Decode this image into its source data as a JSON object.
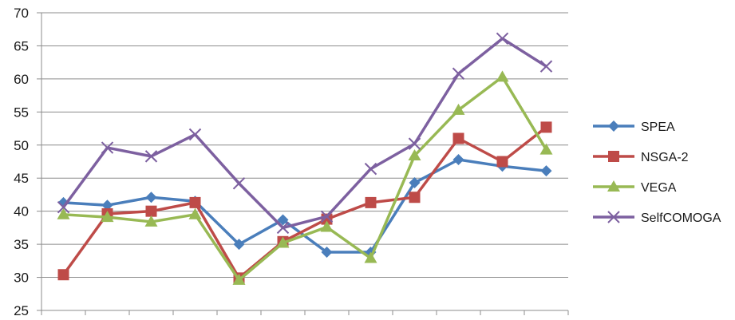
{
  "chart_data": {
    "type": "line",
    "title": "",
    "xlabel": "",
    "ylabel": "",
    "ylim": [
      25,
      70
    ],
    "yticks": [
      25,
      30,
      35,
      40,
      45,
      50,
      55,
      60,
      65,
      70
    ],
    "x_count": 12,
    "grid": "horizontal",
    "legend_position": "right",
    "series": [
      {
        "name": "SPEA",
        "color": "#4a7ebb",
        "marker": "diamond",
        "values": [
          41.3,
          40.9,
          42.1,
          41.5,
          35.0,
          38.7,
          33.8,
          33.8,
          44.3,
          47.8,
          46.8,
          46.1
        ]
      },
      {
        "name": "NSGA-2",
        "color": "#be4b48",
        "marker": "square",
        "values": [
          30.4,
          39.6,
          40.0,
          41.3,
          29.9,
          35.4,
          38.8,
          41.3,
          42.1,
          51.0,
          47.5,
          52.7
        ]
      },
      {
        "name": "VEGA",
        "color": "#98b954",
        "marker": "triangle",
        "values": [
          39.5,
          39.1,
          38.4,
          39.5,
          29.6,
          35.2,
          37.6,
          32.9,
          48.4,
          55.3,
          60.3,
          49.3
        ]
      },
      {
        "name": "SelfCOMOGA",
        "color": "#7d60a0",
        "marker": "x",
        "values": [
          40.6,
          49.6,
          48.3,
          51.6,
          44.2,
          37.5,
          39.2,
          46.4,
          50.2,
          60.8,
          66.1,
          61.9
        ]
      }
    ]
  }
}
